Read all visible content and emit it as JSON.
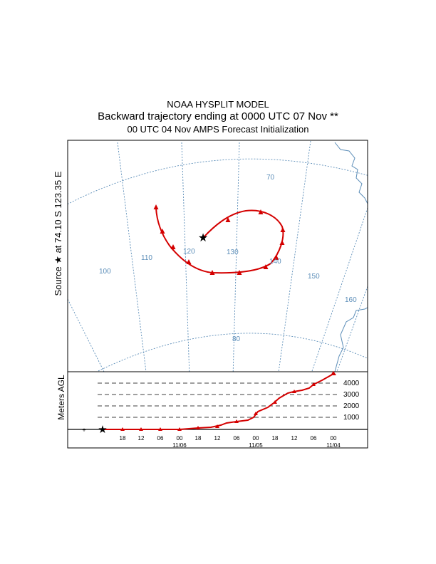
{
  "header": {
    "line1": "NOAA HYSPLIT MODEL",
    "line2": "Backward trajectory ending at 0000 UTC 07 Nov **",
    "line3": "00 UTC 04 Nov    AMPS  Forecast Initialization"
  },
  "map": {
    "source_label": "Source ★ at  74.10 S  123.35 E",
    "latitude_labels": [
      "70",
      "80"
    ],
    "longitude_labels": [
      "100",
      "110",
      "120",
      "130",
      "140",
      "150",
      "160"
    ],
    "grid_color": "#5b8db8",
    "trajectory_color": "#d40000"
  },
  "profile": {
    "ylabel": "Meters AGL",
    "height_labels": [
      "4000",
      "3000",
      "2000",
      "1000"
    ],
    "time_ticks": [
      "18",
      "12",
      "06",
      "00",
      "18",
      "12",
      "06",
      "00",
      "18",
      "12",
      "06",
      "00"
    ],
    "date_labels": [
      "11/06",
      "11/05",
      "11/04"
    ]
  },
  "chart_data": {
    "type": "line",
    "title": "Backward trajectory ending at 0000 UTC 07 Nov **",
    "ylabel": "Meters AGL",
    "ylim": [
      0,
      4500
    ],
    "x": [
      "11/07 00",
      "11/06 18",
      "11/06 12",
      "11/06 06",
      "11/06 00",
      "11/05 18",
      "11/05 12",
      "11/05 06",
      "11/05 00",
      "11/04 18",
      "11/04 12",
      "11/04 06",
      "11/04 00"
    ],
    "series": [
      {
        "name": "",
        "values": [
          0,
          0,
          0,
          0,
          50,
          100,
          250,
          600,
          1300,
          2100,
          2900,
          3500,
          4700
        ]
      }
    ]
  }
}
